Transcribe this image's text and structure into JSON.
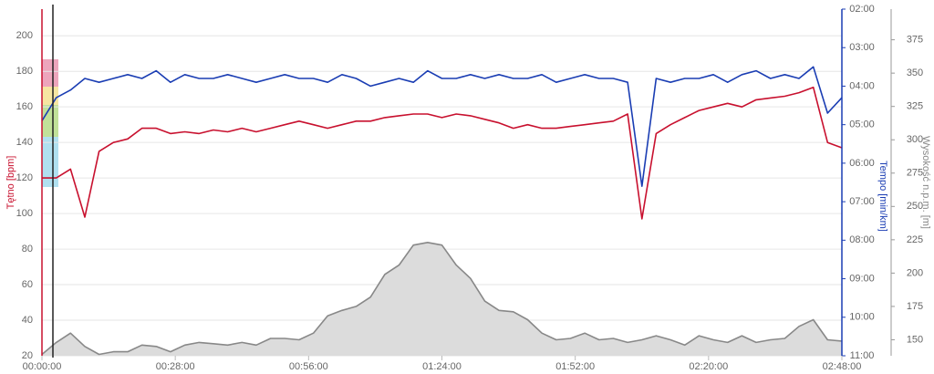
{
  "chart_data": {
    "type": "line",
    "ylabel": "Tętno [bpm]",
    "y2label": "Tempo [min/km]",
    "y3label": "Wysokość n.p.m. [m]",
    "x": [
      0,
      3,
      6,
      9,
      12,
      15,
      18,
      21,
      24,
      27,
      30,
      33,
      36,
      39,
      42,
      45,
      48,
      51,
      54,
      57,
      60,
      63,
      66,
      69,
      72,
      75,
      78,
      81,
      84,
      87,
      90,
      93,
      96,
      99,
      102,
      105,
      108,
      111,
      114,
      117,
      120,
      123,
      126,
      129,
      132,
      135,
      138,
      141,
      144,
      147,
      150,
      153,
      156,
      159,
      162,
      165,
      168
    ],
    "xlim": [
      0,
      168
    ],
    "xticks": [
      {
        "value": 0,
        "label": "00:00:00"
      },
      {
        "value": 28,
        "label": "00:28:00"
      },
      {
        "value": 56,
        "label": "00:56:00"
      },
      {
        "value": 84,
        "label": "01:24:00"
      },
      {
        "value": 112,
        "label": "01:52:00"
      },
      {
        "value": 140,
        "label": "02:20:00"
      },
      {
        "value": 168,
        "label": "02:48:00"
      }
    ],
    "ylim": [
      20,
      215
    ],
    "yticks": [
      20,
      40,
      60,
      80,
      100,
      120,
      140,
      160,
      180,
      200
    ],
    "y2lim": [
      11,
      2
    ],
    "y2ticks": [
      {
        "value": 2,
        "label": "02:00"
      },
      {
        "value": 3,
        "label": "03:00"
      },
      {
        "value": 4,
        "label": "04:00"
      },
      {
        "value": 5,
        "label": "05:00"
      },
      {
        "value": 6,
        "label": "06:00"
      },
      {
        "value": 7,
        "label": "07:00"
      },
      {
        "value": 8,
        "label": "08:00"
      },
      {
        "value": 9,
        "label": "09:00"
      },
      {
        "value": 10,
        "label": "10:00"
      },
      {
        "value": 11,
        "label": "11:00"
      }
    ],
    "y3lim": [
      138,
      398
    ],
    "y3ticks": [
      150,
      175,
      200,
      225,
      250,
      275,
      300,
      325,
      350,
      375
    ],
    "grid": true,
    "series": [
      {
        "color": "#c8102e",
        "axis": "y",
        "values": [
          120,
          120,
          125,
          98,
          135,
          140,
          142,
          148,
          148,
          145,
          146,
          145,
          147,
          146,
          148,
          146,
          148,
          150,
          152,
          150,
          148,
          150,
          152,
          152,
          154,
          155,
          156,
          156,
          154,
          156,
          155,
          153,
          151,
          148,
          150,
          148,
          148,
          149,
          150,
          151,
          152,
          156,
          97,
          145,
          150,
          154,
          158,
          160,
          162,
          160,
          164,
          165,
          166,
          168,
          171,
          140,
          137
        ]
      },
      {
        "color": "#1a3db3",
        "axis": "y2",
        "values": [
          4.9,
          4.3,
          4.1,
          3.8,
          3.9,
          3.8,
          3.7,
          3.8,
          3.6,
          3.9,
          3.7,
          3.8,
          3.8,
          3.7,
          3.8,
          3.9,
          3.8,
          3.7,
          3.8,
          3.8,
          3.9,
          3.7,
          3.8,
          4.0,
          3.9,
          3.8,
          3.9,
          3.6,
          3.8,
          3.8,
          3.7,
          3.8,
          3.7,
          3.8,
          3.8,
          3.7,
          3.9,
          3.8,
          3.7,
          3.8,
          3.8,
          3.9,
          6.6,
          3.8,
          3.9,
          3.8,
          3.8,
          3.7,
          3.9,
          3.7,
          3.6,
          3.8,
          3.7,
          3.8,
          3.5,
          4.7,
          4.3
        ]
      },
      {
        "color": "#888888",
        "axis": "y3",
        "values": [
          139,
          148,
          155,
          145,
          139,
          141,
          141,
          146,
          145,
          141,
          146,
          148,
          147,
          146,
          148,
          146,
          151,
          151,
          150,
          155,
          168,
          172,
          175,
          182,
          199,
          206,
          221,
          223,
          221,
          206,
          196,
          179,
          172,
          171,
          165,
          155,
          150,
          151,
          155,
          150,
          151,
          148,
          150,
          153,
          150,
          146,
          153,
          150,
          148,
          153,
          148,
          150,
          151,
          160,
          165,
          150,
          149
        ]
      }
    ]
  }
}
